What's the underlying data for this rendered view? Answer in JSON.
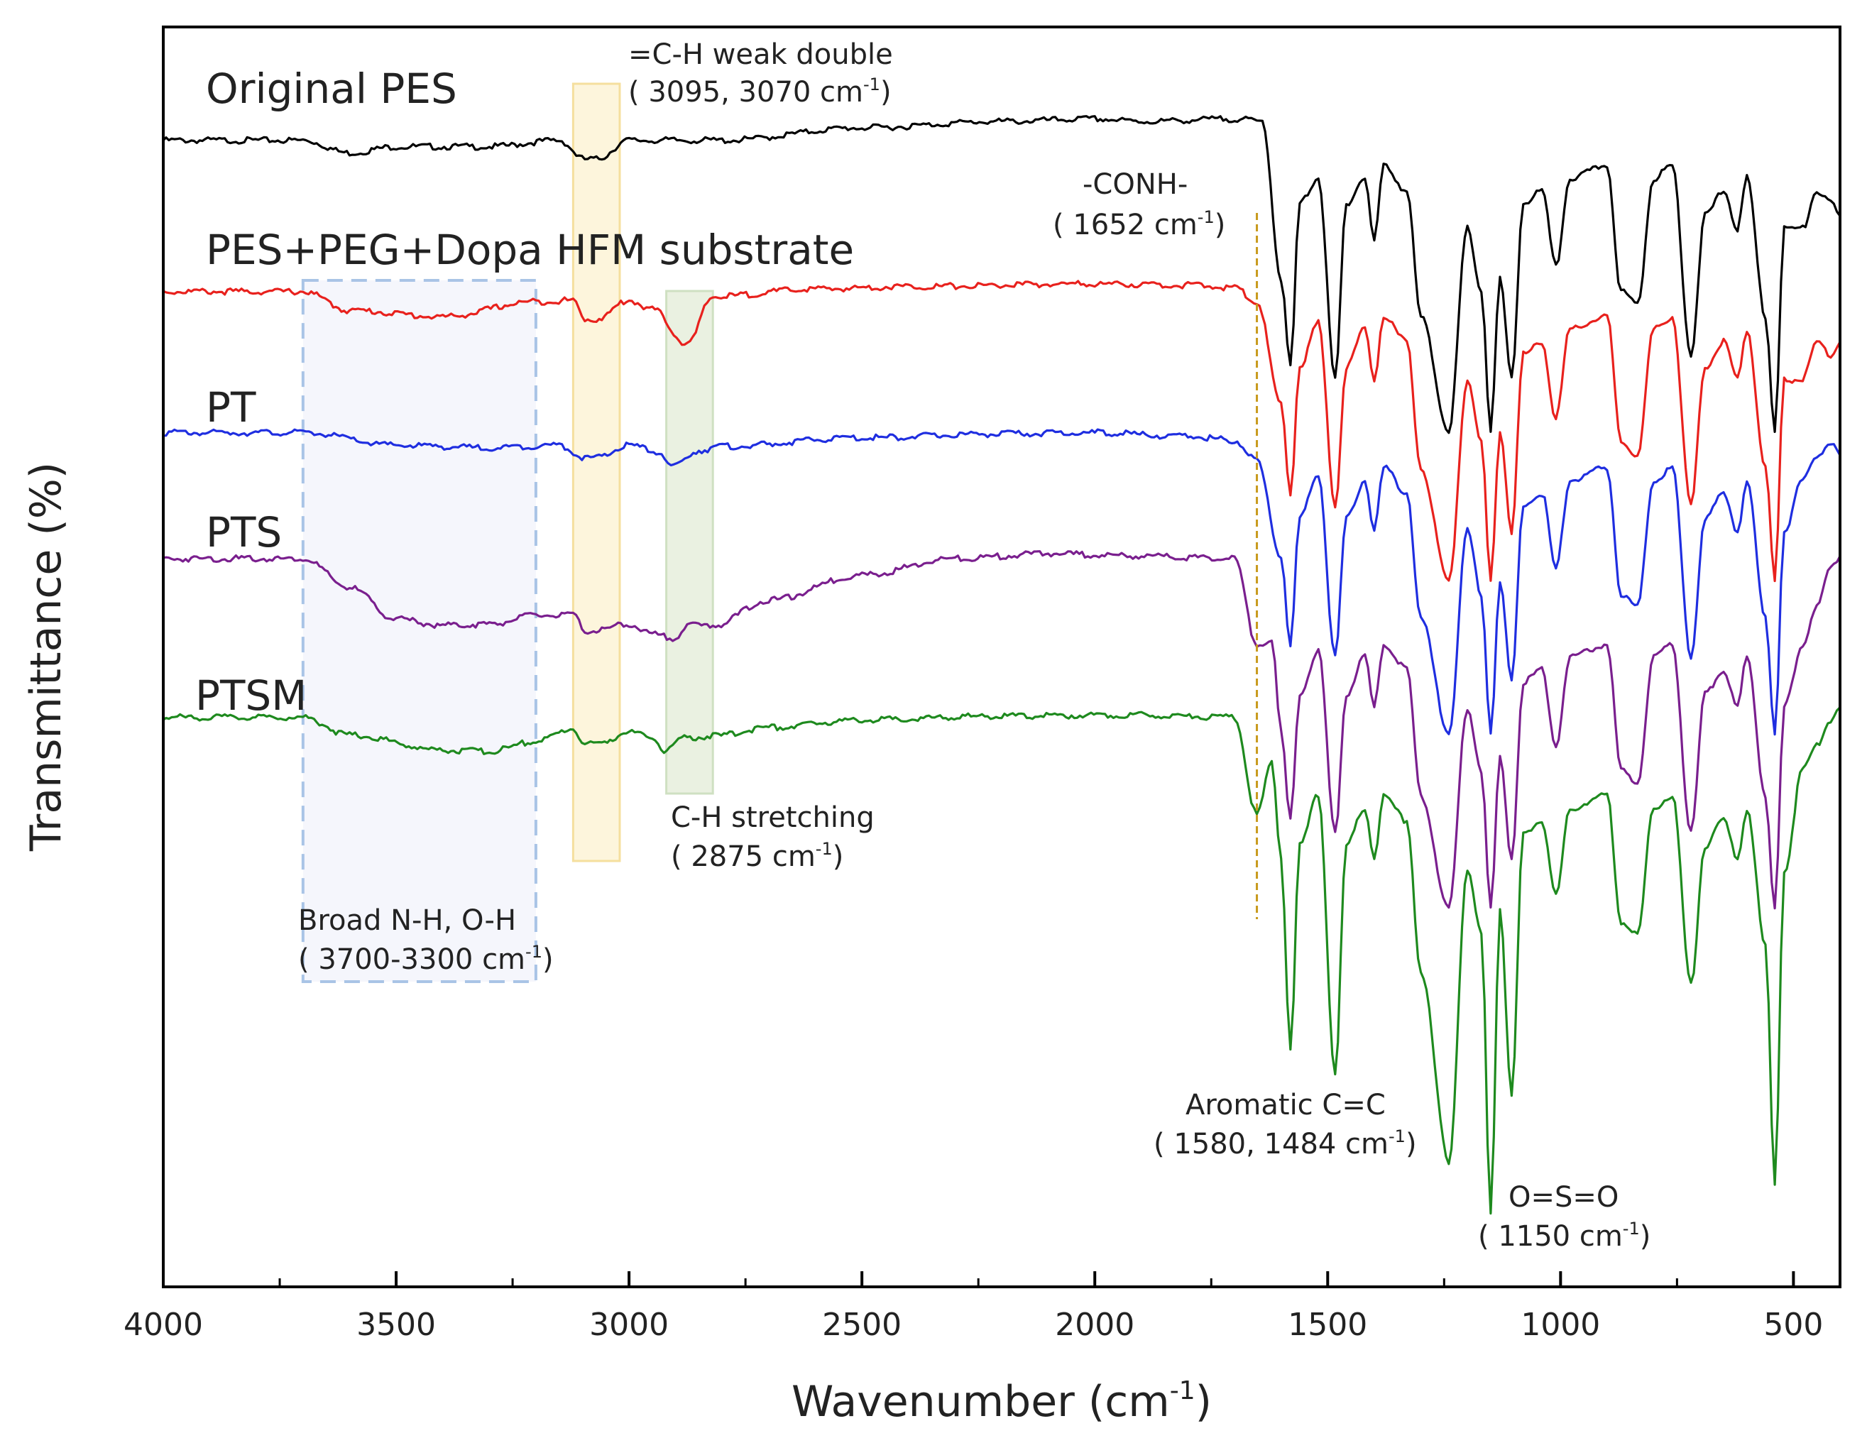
{
  "chart_data": {
    "type": "line",
    "title": "",
    "xlabel": "Wavenumber (cm",
    "xlabel_sup": "-1",
    "xlabel_close": ")",
    "ylabel": "Transmittance (%)",
    "xlim": [
      4000,
      400
    ],
    "x_reversed": true,
    "ylim": [
      0,
      100
    ],
    "y_ticks_shown": false,
    "x_ticks": [
      "4000",
      "3500",
      "3000",
      "2500",
      "2000",
      "1500",
      "1000",
      "500"
    ],
    "x_tick_values": [
      4000,
      3500,
      3000,
      2500,
      2000,
      1500,
      1000,
      500
    ],
    "series": [
      {
        "name": "Original PES",
        "color": "#000000",
        "baseline": 91,
        "points": [
          [
            4000,
            91
          ],
          [
            3700,
            91
          ],
          [
            3600,
            90
          ],
          [
            3500,
            90.5
          ],
          [
            3300,
            90.5
          ],
          [
            3150,
            91
          ],
          [
            3095,
            89.5
          ],
          [
            3070,
            89.5
          ],
          [
            3000,
            91
          ],
          [
            2800,
            91
          ],
          [
            2500,
            92
          ],
          [
            2200,
            92.5
          ],
          [
            2000,
            92.7
          ],
          [
            1900,
            92.5
          ],
          [
            1700,
            92.7
          ],
          [
            1640,
            92.5
          ],
          [
            1600,
            80
          ],
          [
            1580,
            73
          ],
          [
            1560,
            86
          ],
          [
            1520,
            88
          ],
          [
            1484,
            72
          ],
          [
            1460,
            86
          ],
          [
            1420,
            88
          ],
          [
            1400,
            83
          ],
          [
            1380,
            89
          ],
          [
            1330,
            87
          ],
          [
            1300,
            77
          ],
          [
            1240,
            68
          ],
          [
            1200,
            84
          ],
          [
            1170,
            79
          ],
          [
            1150,
            68
          ],
          [
            1130,
            80
          ],
          [
            1105,
            72
          ],
          [
            1080,
            86
          ],
          [
            1040,
            87
          ],
          [
            1010,
            81
          ],
          [
            980,
            88
          ],
          [
            900,
            89
          ],
          [
            870,
            79
          ],
          [
            835,
            78
          ],
          [
            800,
            88
          ],
          [
            760,
            89
          ],
          [
            720,
            74
          ],
          [
            690,
            85
          ],
          [
            650,
            87
          ],
          [
            620,
            84
          ],
          [
            600,
            88
          ],
          [
            560,
            77
          ],
          [
            540,
            68
          ],
          [
            520,
            84
          ],
          [
            480,
            84
          ],
          [
            450,
            87
          ],
          [
            420,
            86
          ],
          [
            400,
            85
          ]
        ]
      },
      {
        "name": "PES+PEG+Dopa HFM substrate",
        "color": "#e8211d",
        "baseline": 79,
        "points": [
          [
            4000,
            79
          ],
          [
            3700,
            79
          ],
          [
            3600,
            77.5
          ],
          [
            3400,
            77
          ],
          [
            3200,
            78.2
          ],
          [
            3120,
            78.3
          ],
          [
            3095,
            76.8
          ],
          [
            3070,
            76.8
          ],
          [
            3000,
            78.3
          ],
          [
            2950,
            77.6
          ],
          [
            2875,
            74.8
          ],
          [
            2820,
            78.6
          ],
          [
            2600,
            79.2
          ],
          [
            2400,
            79.4
          ],
          [
            2000,
            79.6
          ],
          [
            1800,
            79.5
          ],
          [
            1700,
            79.3
          ],
          [
            1652,
            78.2
          ],
          [
            1600,
            70
          ],
          [
            1580,
            63
          ],
          [
            1560,
            73
          ],
          [
            1520,
            76.5
          ],
          [
            1484,
            62
          ],
          [
            1460,
            73
          ],
          [
            1420,
            76
          ],
          [
            1400,
            72
          ],
          [
            1380,
            77
          ],
          [
            1330,
            75
          ],
          [
            1300,
            65
          ],
          [
            1240,
            56
          ],
          [
            1200,
            72
          ],
          [
            1170,
            67
          ],
          [
            1150,
            56
          ],
          [
            1130,
            68
          ],
          [
            1105,
            60
          ],
          [
            1080,
            74
          ],
          [
            1040,
            75
          ],
          [
            1010,
            69
          ],
          [
            980,
            76
          ],
          [
            900,
            77
          ],
          [
            870,
            67
          ],
          [
            835,
            66
          ],
          [
            800,
            76
          ],
          [
            760,
            77
          ],
          [
            720,
            62
          ],
          [
            690,
            73
          ],
          [
            650,
            75
          ],
          [
            620,
            72
          ],
          [
            600,
            76
          ],
          [
            560,
            65
          ],
          [
            540,
            56
          ],
          [
            520,
            72
          ],
          [
            480,
            72
          ],
          [
            450,
            75
          ],
          [
            420,
            74
          ],
          [
            400,
            75
          ]
        ]
      },
      {
        "name": "PT",
        "color": "#1f2ee0",
        "baseline": 67.8,
        "points": [
          [
            4000,
            67.8
          ],
          [
            3700,
            67.8
          ],
          [
            3500,
            66.8
          ],
          [
            3300,
            66.6
          ],
          [
            3150,
            66.8
          ],
          [
            3095,
            65.8
          ],
          [
            3070,
            65.8
          ],
          [
            3000,
            66.8
          ],
          [
            2930,
            66.2
          ],
          [
            2910,
            65
          ],
          [
            2850,
            66.4
          ],
          [
            2800,
            66.7
          ],
          [
            2500,
            67.4
          ],
          [
            2200,
            67.7
          ],
          [
            2000,
            67.8
          ],
          [
            1800,
            67.5
          ],
          [
            1700,
            67.2
          ],
          [
            1652,
            65.6
          ],
          [
            1600,
            58
          ],
          [
            1580,
            51
          ],
          [
            1560,
            61
          ],
          [
            1520,
            64.5
          ],
          [
            1484,
            50
          ],
          [
            1460,
            61
          ],
          [
            1420,
            64
          ],
          [
            1400,
            60
          ],
          [
            1380,
            65
          ],
          [
            1330,
            63
          ],
          [
            1300,
            53
          ],
          [
            1240,
            44
          ],
          [
            1200,
            60
          ],
          [
            1170,
            55
          ],
          [
            1150,
            44
          ],
          [
            1130,
            56
          ],
          [
            1105,
            48
          ],
          [
            1080,
            62
          ],
          [
            1040,
            63
          ],
          [
            1010,
            57
          ],
          [
            980,
            64
          ],
          [
            900,
            65
          ],
          [
            870,
            55
          ],
          [
            835,
            54
          ],
          [
            800,
            64
          ],
          [
            760,
            65
          ],
          [
            720,
            50
          ],
          [
            690,
            61
          ],
          [
            650,
            63
          ],
          [
            620,
            60
          ],
          [
            600,
            64
          ],
          [
            560,
            53
          ],
          [
            540,
            44
          ],
          [
            520,
            60
          ],
          [
            480,
            64
          ],
          [
            450,
            66
          ],
          [
            420,
            67
          ],
          [
            400,
            66
          ]
        ]
      },
      {
        "name": "PTS",
        "color": "#7a1f8e",
        "baseline": 57.8,
        "points": [
          [
            4000,
            57.8
          ],
          [
            3700,
            57.8
          ],
          [
            3600,
            55.5
          ],
          [
            3500,
            53
          ],
          [
            3400,
            52.5
          ],
          [
            3300,
            52.6
          ],
          [
            3200,
            53.3
          ],
          [
            3120,
            53.3
          ],
          [
            3095,
            52.1
          ],
          [
            3070,
            52.1
          ],
          [
            3000,
            52.6
          ],
          [
            2950,
            51.8
          ],
          [
            2900,
            51.5
          ],
          [
            2875,
            52.5
          ],
          [
            2820,
            52.5
          ],
          [
            2700,
            54.5
          ],
          [
            2500,
            56.5
          ],
          [
            2300,
            57.8
          ],
          [
            2100,
            58.2
          ],
          [
            1900,
            58
          ],
          [
            1700,
            57.8
          ],
          [
            1652,
            51
          ],
          [
            1620,
            51.3
          ],
          [
            1600,
            44
          ],
          [
            1580,
            37
          ],
          [
            1560,
            47
          ],
          [
            1520,
            50.5
          ],
          [
            1484,
            36
          ],
          [
            1460,
            47
          ],
          [
            1420,
            50
          ],
          [
            1400,
            46
          ],
          [
            1380,
            51
          ],
          [
            1330,
            49
          ],
          [
            1300,
            39
          ],
          [
            1240,
            30
          ],
          [
            1200,
            46
          ],
          [
            1170,
            41
          ],
          [
            1150,
            30
          ],
          [
            1130,
            42
          ],
          [
            1105,
            34
          ],
          [
            1080,
            48
          ],
          [
            1040,
            49
          ],
          [
            1010,
            43
          ],
          [
            980,
            50
          ],
          [
            900,
            51
          ],
          [
            870,
            41
          ],
          [
            835,
            40
          ],
          [
            800,
            50
          ],
          [
            760,
            51
          ],
          [
            720,
            36
          ],
          [
            690,
            47
          ],
          [
            650,
            49
          ],
          [
            620,
            46
          ],
          [
            600,
            50
          ],
          [
            560,
            39
          ],
          [
            540,
            30
          ],
          [
            520,
            46
          ],
          [
            480,
            51
          ],
          [
            450,
            54
          ],
          [
            420,
            57
          ],
          [
            400,
            58
          ]
        ]
      },
      {
        "name": "PTSM",
        "color": "#1e8a1e",
        "baseline": 45.2,
        "points": [
          [
            4000,
            45.2
          ],
          [
            3700,
            45.2
          ],
          [
            3600,
            43.8
          ],
          [
            3400,
            42.6
          ],
          [
            3300,
            42.5
          ],
          [
            3200,
            43.3
          ],
          [
            3120,
            44.3
          ],
          [
            3095,
            43.1
          ],
          [
            3070,
            43.1
          ],
          [
            3000,
            44
          ],
          [
            2950,
            43.6
          ],
          [
            2925,
            42.6
          ],
          [
            2875,
            43.6
          ],
          [
            2820,
            43.7
          ],
          [
            2700,
            44.4
          ],
          [
            2500,
            45
          ],
          [
            2200,
            45.3
          ],
          [
            1900,
            45.4
          ],
          [
            1700,
            45.2
          ],
          [
            1652,
            37.5
          ],
          [
            1620,
            41.5
          ],
          [
            1600,
            34
          ],
          [
            1580,
            19
          ],
          [
            1560,
            35
          ],
          [
            1520,
            39
          ],
          [
            1484,
            17
          ],
          [
            1460,
            35
          ],
          [
            1420,
            38
          ],
          [
            1400,
            34
          ],
          [
            1380,
            39
          ],
          [
            1330,
            37
          ],
          [
            1300,
            25
          ],
          [
            1240,
            10
          ],
          [
            1200,
            33
          ],
          [
            1170,
            28
          ],
          [
            1150,
            6
          ],
          [
            1130,
            30
          ],
          [
            1105,
            15
          ],
          [
            1080,
            36
          ],
          [
            1040,
            37
          ],
          [
            1010,
            31
          ],
          [
            980,
            38
          ],
          [
            900,
            39
          ],
          [
            870,
            29
          ],
          [
            835,
            28
          ],
          [
            800,
            38
          ],
          [
            760,
            39
          ],
          [
            720,
            24
          ],
          [
            690,
            35
          ],
          [
            650,
            37
          ],
          [
            620,
            34
          ],
          [
            600,
            38
          ],
          [
            560,
            27
          ],
          [
            540,
            8
          ],
          [
            520,
            33
          ],
          [
            480,
            41
          ],
          [
            450,
            43
          ],
          [
            420,
            45
          ],
          [
            400,
            46
          ]
        ]
      }
    ],
    "annotations": [
      {
        "id": "ch-weak",
        "line1": "=C-H weak double",
        "line2_a": "( 3095, 3070 cm",
        "sup": "-1",
        "line2_b": ")"
      },
      {
        "id": "conh",
        "line1": "-CONH-",
        "line2_a": "( 1652 cm",
        "sup": "-1",
        "line2_b": ")"
      },
      {
        "id": "ch-stretch",
        "line1": "C-H stretching",
        "line2_a": "( 2875 cm",
        "sup": "-1",
        "line2_b": ")"
      },
      {
        "id": "nh-oh",
        "line1": "Broad N-H, O-H",
        "line2_a": "( 3700-3300 cm",
        "sup": "-1",
        "line2_b": ")"
      },
      {
        "id": "aromatic",
        "line1": "Aromatic C=C",
        "line2_a": "( 1580, 1484 cm",
        "sup": "-1",
        "line2_b": ")"
      },
      {
        "id": "oso",
        "line1": "O=S=O",
        "line2_a": "( 1150 cm",
        "sup": "-1",
        "line2_b": ")"
      }
    ],
    "highlight_regions": [
      {
        "name": "N-H, O-H band",
        "x_from": 3700,
        "x_to": 3200,
        "fill": "#f3f4fb",
        "stroke": "#a9c4e6",
        "dashed": true
      },
      {
        "name": "=C-H band",
        "x_from": 3120,
        "x_to": 3020,
        "fill": "#fdf3d6",
        "stroke": "#f5df9e",
        "dashed": false
      },
      {
        "name": "C-H stretching band",
        "x_from": 2920,
        "x_to": 2820,
        "fill": "#e6efdc",
        "stroke": "#cfe0c2",
        "dashed": false
      }
    ],
    "reference_line": {
      "name": "-CONH- marker",
      "x": 1652,
      "color": "#c89a1c"
    }
  }
}
